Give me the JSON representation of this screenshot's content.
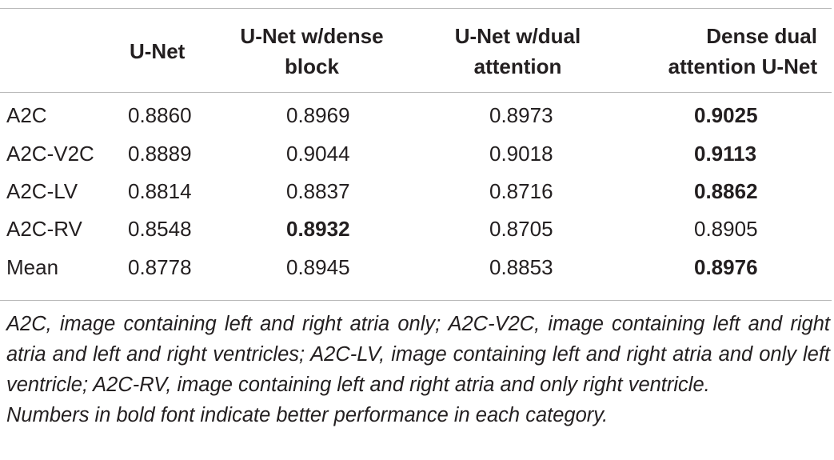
{
  "table": {
    "headers": [
      {
        "line1": "",
        "line2": ""
      },
      {
        "line1": "U-Net",
        "line2": ""
      },
      {
        "line1": "U-Net w/dense",
        "line2": "block"
      },
      {
        "line1": "U-Net w/dual",
        "line2": "attention"
      },
      {
        "line1": "Dense dual",
        "line2": "attention U-Net"
      }
    ],
    "rows": [
      {
        "label": "A2C",
        "values": [
          "0.8860",
          "0.8969",
          "0.8973",
          "0.9025"
        ],
        "bold": [
          false,
          false,
          false,
          true
        ]
      },
      {
        "label": "A2C-V2C",
        "values": [
          "0.8889",
          "0.9044",
          "0.9018",
          "0.9113"
        ],
        "bold": [
          false,
          false,
          false,
          true
        ]
      },
      {
        "label": "A2C-LV",
        "values": [
          "0.8814",
          "0.8837",
          "0.8716",
          "0.8862"
        ],
        "bold": [
          false,
          false,
          false,
          true
        ]
      },
      {
        "label": "A2C-RV",
        "values": [
          "0.8548",
          "0.8932",
          "0.8705",
          "0.8905"
        ],
        "bold": [
          false,
          true,
          false,
          false
        ]
      },
      {
        "label": "Mean",
        "values": [
          "0.8778",
          "0.8945",
          "0.8853",
          "0.8976"
        ],
        "bold": [
          false,
          false,
          false,
          true
        ]
      }
    ]
  },
  "footnotes": {
    "abbreviations": "A2C, image containing left and right atria only; A2C-V2C, image containing left and right atria and left and right ventricles; A2C-LV, image containing left and right atria and only left ventricle; A2C-RV, image containing left and right atria and only right ventricle.",
    "bold_note": "Numbers in bold font indicate better performance in each category."
  }
}
